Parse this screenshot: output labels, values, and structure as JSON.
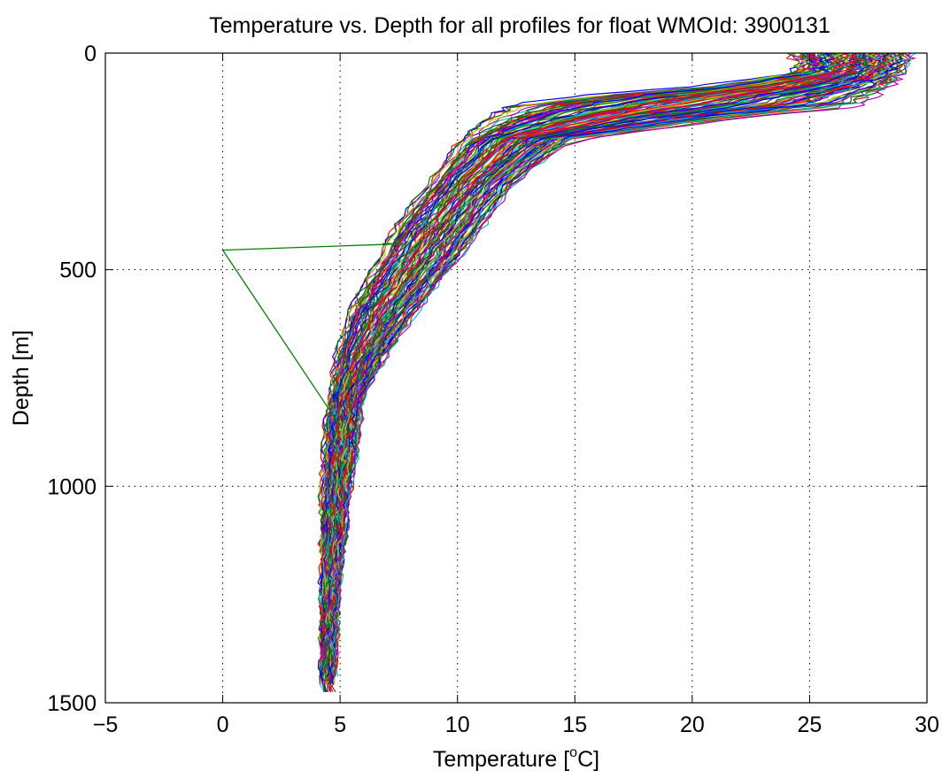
{
  "chart_data": {
    "type": "line",
    "title": "Temperature vs. Depth for all profiles for float WMOId: 3900131",
    "xlabel": {
      "prefix": "Temperature [",
      "sup": "o",
      "suffix": "C]"
    },
    "ylabel": "Depth [m]",
    "xlim": [
      -5,
      30
    ],
    "ylim": [
      0,
      1500
    ],
    "y_reversed": true,
    "grid": true,
    "x_ticks": [
      -5,
      0,
      5,
      10,
      15,
      20,
      25,
      30
    ],
    "y_ticks": [
      0,
      500,
      1000,
      1500
    ],
    "x_tick_labels": [
      "−5",
      "0",
      "5",
      "10",
      "15",
      "20",
      "25",
      "30"
    ],
    "y_tick_labels": [
      "0",
      "500",
      "1000",
      "1500"
    ],
    "series_colors": [
      "#ff0000",
      "#0000ff",
      "#008000",
      "#00bfbf",
      "#bf00bf",
      "#bfbf00",
      "#404040"
    ],
    "envelope": {
      "depth": [
        0,
        20,
        50,
        80,
        100,
        120,
        150,
        200,
        300,
        400,
        500,
        600,
        700,
        800,
        900,
        1000,
        1100,
        1200,
        1300,
        1400,
        1480
      ],
      "t_low": [
        24.0,
        24.5,
        24.0,
        20.0,
        15.0,
        12.0,
        11.0,
        10.0,
        8.7,
        7.3,
        6.3,
        5.3,
        4.8,
        4.5,
        4.3,
        4.2,
        4.2,
        4.2,
        4.2,
        4.2,
        4.2
      ],
      "t_high": [
        29.5,
        29.3,
        29.0,
        28.5,
        28.0,
        27.5,
        22.0,
        15.0,
        12.5,
        11.2,
        9.8,
        8.3,
        7.0,
        6.0,
        5.8,
        5.5,
        5.3,
        5.0,
        4.9,
        4.8,
        4.7
      ]
    },
    "profile_count": 110,
    "anomaly": {
      "x": [
        6.8,
        7.8,
        0.0,
        4.5,
        5.0
      ],
      "y": [
        440,
        440,
        455,
        820,
        860
      ]
    }
  }
}
